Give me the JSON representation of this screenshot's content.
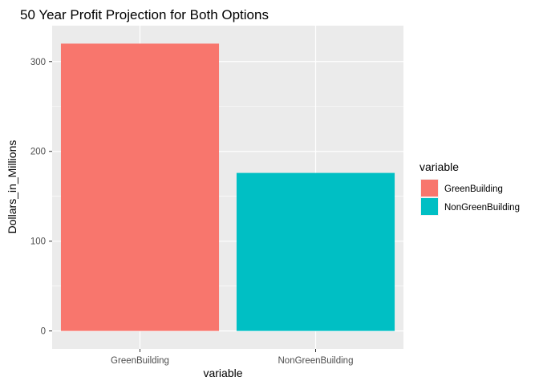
{
  "chart_data": {
    "type": "bar",
    "title": "50 Year Profit Projection for Both Options",
    "xlabel": "variable",
    "ylabel": "Dollars_in_Millions",
    "categories": [
      "GreenBuilding",
      "NonGreenBuilding"
    ],
    "values": [
      320,
      176
    ],
    "colors": [
      "#F8766D",
      "#00BFC4"
    ],
    "ylim": [
      -20,
      340
    ],
    "yticks": [
      0,
      100,
      200,
      300
    ],
    "grid": true,
    "background": "#EBEBEB",
    "legend": {
      "title": "variable",
      "position": "right",
      "entries": [
        "GreenBuilding",
        "NonGreenBuilding"
      ]
    }
  }
}
